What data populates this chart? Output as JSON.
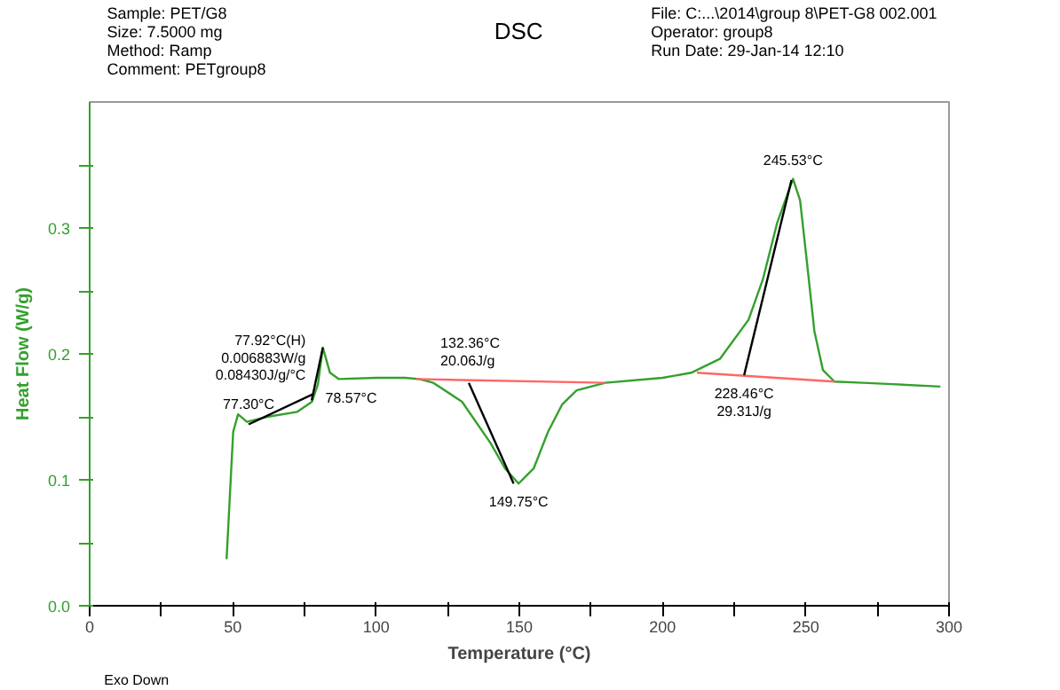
{
  "chart_data": {
    "type": "line",
    "title": "DSC",
    "xlabel": "Temperature (°C)",
    "ylabel": "Heat Flow (W/g)",
    "xlim": [
      0,
      300
    ],
    "ylim": [
      0,
      0.4
    ],
    "xticks": [
      0,
      {
        "value": 25,
        "label": null
      },
      50,
      {
        "value": 75,
        "label": null
      },
      100,
      {
        "value": 125,
        "label": null
      },
      150,
      {
        "value": 175,
        "label": null
      },
      200,
      {
        "value": 225,
        "label": null
      },
      250,
      {
        "value": 275,
        "label": null
      },
      300
    ],
    "yticks": [
      {
        "value": 0,
        "label": "0.0"
      },
      {
        "value": 0.05,
        "label": null
      },
      0.1,
      {
        "value": 0.15,
        "label": null
      },
      0.2,
      {
        "value": 0.25,
        "label": null
      },
      0.3,
      {
        "value": 0.35,
        "label": null
      }
    ],
    "grid": false,
    "series": [
      {
        "color": "#33a02c",
        "x": [
          47.8,
          50.1,
          51.8,
          54.9,
          62,
          72.5,
          77.6,
          79.7,
          81.4,
          83.9,
          87,
          100,
          110,
          115,
          120,
          130,
          140,
          145,
          149.75,
          155,
          160,
          165,
          170,
          180,
          200,
          210,
          220,
          230,
          235,
          240,
          245.53,
          248,
          250,
          253,
          256,
          260,
          270,
          280,
          297
        ],
        "values": [
          0.037,
          0.138,
          0.152,
          0.146,
          0.15,
          0.154,
          0.162,
          0.176,
          0.205,
          0.185,
          0.18,
          0.181,
          0.181,
          0.18,
          0.177,
          0.162,
          0.129,
          0.109,
          0.097,
          0.109,
          0.138,
          0.16,
          0.171,
          0.177,
          0.181,
          0.185,
          0.196,
          0.227,
          0.259,
          0.304,
          0.339,
          0.322,
          0.281,
          0.218,
          0.187,
          0.178,
          0.177,
          0.176,
          0.174
        ]
      },
      {
        "color": "#ff6666",
        "x": [
          114,
          180
        ],
        "values": [
          0.18,
          0.177
        ]
      },
      {
        "color": "#ff6666",
        "x": [
          212,
          260
        ],
        "values": [
          0.185,
          0.178
        ]
      },
      {
        "color": "#000000",
        "x": [
          55.5,
          78
        ],
        "values": [
          0.144,
          0.168
        ]
      },
      {
        "color": "#000000",
        "x": [
          77.5,
          81.4
        ],
        "values": [
          0.163,
          0.205
        ]
      },
      {
        "color": "#000000",
        "x": [
          132.36,
          148
        ],
        "values": [
          0.177,
          0.097
        ]
      },
      {
        "color": "#000000",
        "x": [
          228.46,
          245
        ],
        "values": [
          0.183,
          0.338
        ]
      }
    ],
    "annotations": [
      "Sample: PET/G8\nSize:   7.5000 mg\nMethod: Ramp\nComment: PETgroup8",
      "File: C:...\\2014\\group 8\\PET-G8 002.001\nOperator: group8\nRun Date: 29-Jan-14 12:10",
      "Exo Down",
      {
        "text": "77.92°C(H)\n0.006883W/g\n0.08430J/g/°C",
        "x": 77.92,
        "y": 0.168
      },
      {
        "text": "77.30°C",
        "x": 55.5,
        "y": 0.144
      },
      {
        "text": "78.57°C",
        "x": 78.57,
        "y": 0.165
      },
      {
        "text": "132.36°C\n20.06J/g",
        "x": 132.36,
        "y": 0.177
      },
      {
        "text": "149.75°C",
        "x": 149.75,
        "y": 0.097
      },
      {
        "text": "228.46°C\n29.31J/g",
        "x": 228.46,
        "y": 0.183
      },
      {
        "text": "245.53°C",
        "x": 245.53,
        "y": 0.339
      }
    ]
  }
}
